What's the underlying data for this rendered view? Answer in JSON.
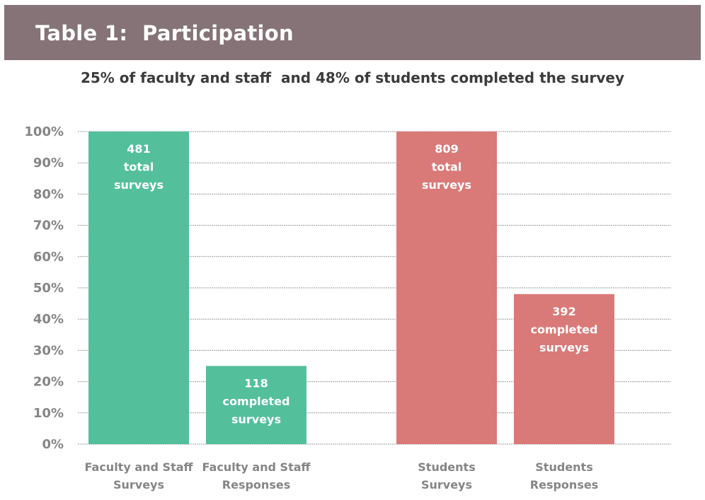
{
  "header": {
    "title": "Table 1:  Participation"
  },
  "subtitle": "25% of faculty and staff  and 48% of students completed the survey",
  "colors": {
    "header_band": "#857377",
    "faculty": "#53bf9b",
    "students": "#d97a78",
    "grid": "#9a9a9a",
    "axis_text": "#858585"
  },
  "chart_data": {
    "type": "bar",
    "title": "25% of faculty and staff  and 48% of students completed the survey",
    "xlabel": "",
    "ylabel": "",
    "ylim": [
      0,
      100
    ],
    "yticks": [
      "0%",
      "10%",
      "20%",
      "30%",
      "40%",
      "50%",
      "60%",
      "70%",
      "80%",
      "90%",
      "100%"
    ],
    "grid": true,
    "legend": "none",
    "categories": [
      [
        "Faculty and Staff",
        "Surveys"
      ],
      [
        "Faculty and Staff",
        "Responses"
      ],
      [
        "Students",
        "Surveys"
      ],
      [
        "Students",
        "Responses"
      ]
    ],
    "values": [
      100,
      25,
      100,
      48
    ],
    "bar_colors": [
      "#53bf9b",
      "#53bf9b",
      "#d97a78",
      "#d97a78"
    ],
    "data_labels": [
      [
        "481",
        "total",
        "surveys"
      ],
      [
        "118",
        "completed",
        "surveys"
      ],
      [
        "809",
        "total",
        "surveys"
      ],
      [
        "392",
        "completed",
        "surveys"
      ]
    ]
  }
}
